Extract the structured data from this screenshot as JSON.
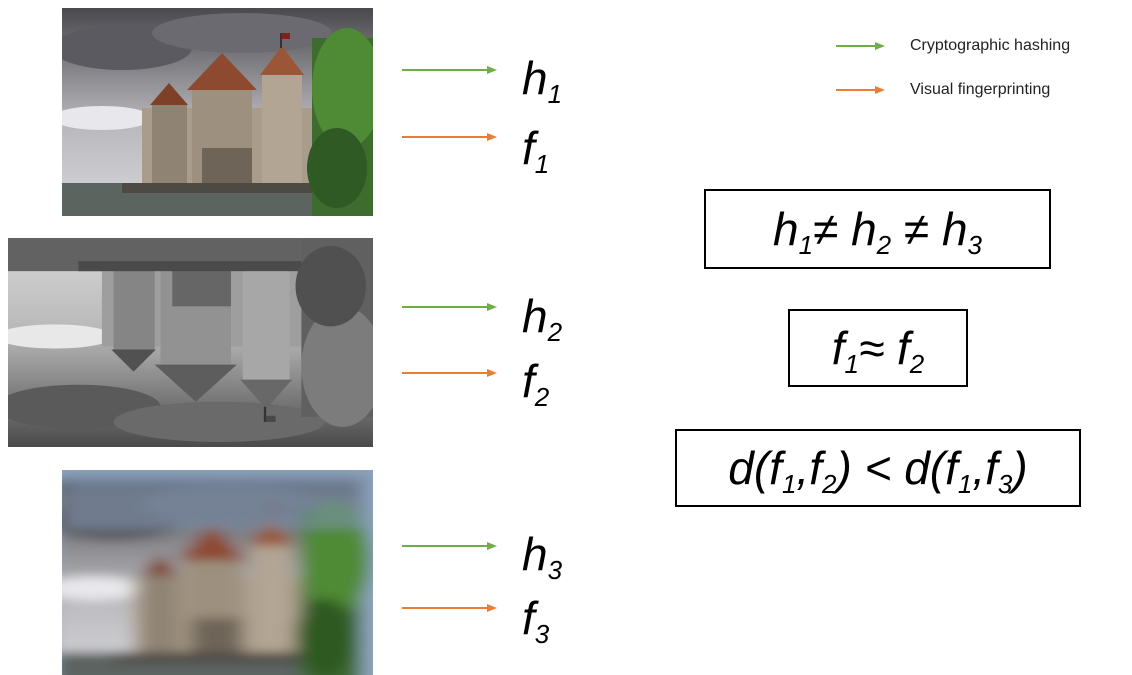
{
  "rows": [
    {
      "hash": {
        "text": "h",
        "sub": "1"
      },
      "fingerprint": {
        "text": "f",
        "sub": "1"
      }
    },
    {
      "hash": {
        "text": "h",
        "sub": "2"
      },
      "fingerprint": {
        "text": "f",
        "sub": "2"
      }
    },
    {
      "hash": {
        "text": "h",
        "sub": "3"
      },
      "fingerprint": {
        "text": "f",
        "sub": "3"
      }
    }
  ],
  "legend": [
    {
      "label": "Cryptographic hashing",
      "color": "#70ad47"
    },
    {
      "label": "Visual fingerprinting",
      "color": "#ed7d31"
    }
  ],
  "equations": [
    [
      {
        "text": "h",
        "sub": "1"
      },
      {
        "text": "≠ h",
        "sub": "2"
      },
      {
        "text": " ≠ h",
        "sub": "3"
      }
    ],
    [
      {
        "text": "f",
        "sub": "1"
      },
      {
        "text": "≈ f",
        "sub": "2"
      }
    ],
    [
      {
        "text": "d(f",
        "sub": "1"
      },
      {
        "text": ",f",
        "sub": "2"
      },
      {
        "text": ") < d(f",
        "sub": "1"
      },
      {
        "text": ",f",
        "sub": "3"
      },
      {
        "text": ")"
      }
    ]
  ]
}
